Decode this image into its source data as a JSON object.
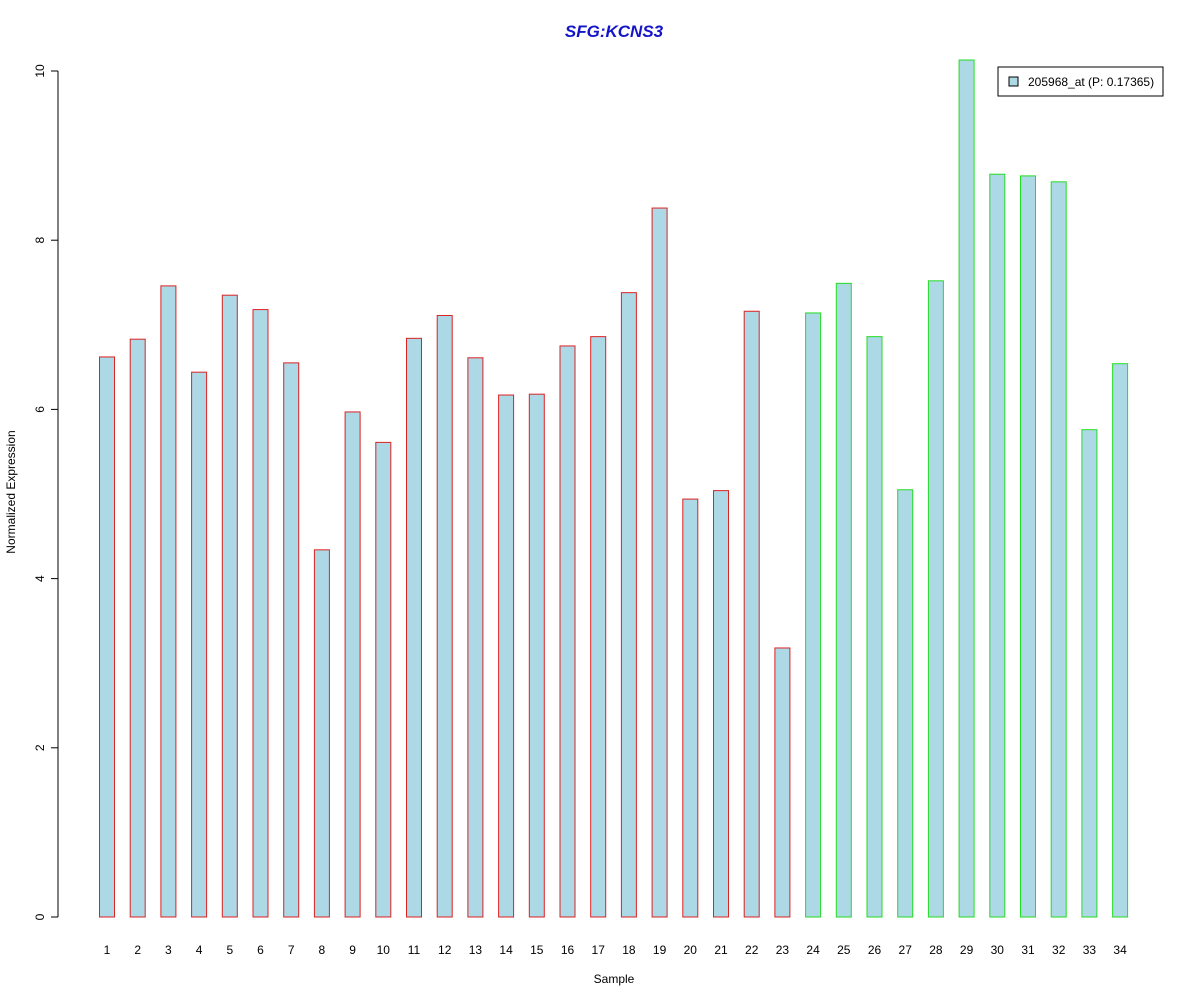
{
  "chart_data": {
    "type": "bar",
    "title": "SFG:KCNS3",
    "xlabel": "Sample",
    "ylabel": "Normalized Expression",
    "ylim": [
      0,
      10
    ],
    "yticks": [
      0,
      2,
      4,
      6,
      8,
      10
    ],
    "categories": [
      "1",
      "2",
      "3",
      "4",
      "5",
      "6",
      "7",
      "8",
      "9",
      "10",
      "11",
      "12",
      "13",
      "14",
      "15",
      "16",
      "17",
      "18",
      "19",
      "20",
      "21",
      "22",
      "23",
      "24",
      "25",
      "26",
      "27",
      "28",
      "29",
      "30",
      "31",
      "32",
      "33",
      "34"
    ],
    "series": [
      {
        "name": "205968_at (P: 0.17365)",
        "values": [
          6.62,
          6.83,
          7.46,
          6.44,
          7.35,
          7.18,
          6.55,
          4.34,
          5.97,
          5.61,
          6.84,
          7.11,
          6.61,
          6.17,
          6.18,
          6.75,
          6.86,
          7.38,
          8.38,
          4.94,
          5.04,
          7.16,
          3.18,
          7.14,
          7.49,
          6.86,
          5.05,
          7.52,
          10.13,
          8.78,
          8.76,
          8.69,
          5.76,
          6.54
        ]
      }
    ],
    "groups": [
      {
        "samples": "1-23",
        "border_color": "#dd2222"
      },
      {
        "samples": "24-34",
        "border_color": "#22dd22"
      }
    ],
    "bar_fill": "#add8e6",
    "title_color": "#1515c8",
    "grid": false,
    "legend_position": "top-right"
  }
}
